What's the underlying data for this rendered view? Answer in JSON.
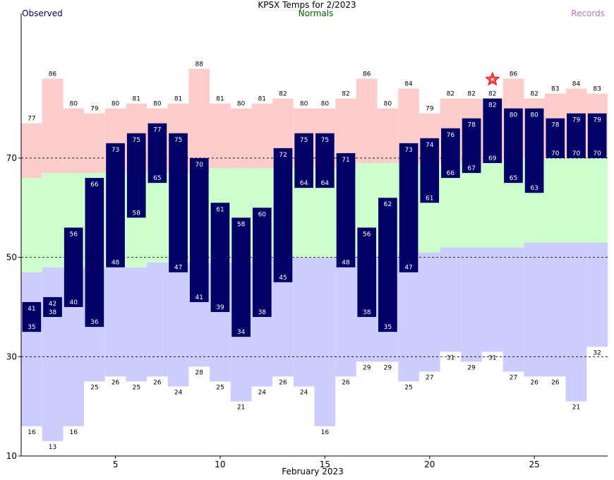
{
  "header": {
    "title": "KPSX Temps for 2/2023",
    "observed_label": "Observed",
    "normals_label": "Normals",
    "records_label": "Records",
    "colors": {
      "observed_text": "#000066",
      "title_text": "#000000",
      "normals_text": "#006600",
      "records_text": "#bb77cc"
    }
  },
  "chart_data": {
    "type": "bar",
    "title": "KPSX Temps for 2/2023",
    "xlabel": "February 2023",
    "ylabel": "",
    "xlim": [
      1,
      28
    ],
    "ylim": [
      10,
      98
    ],
    "x_ticks": [
      5,
      10,
      15,
      20,
      25
    ],
    "y_ticks": [
      10,
      30,
      50,
      70
    ],
    "dashed_gridlines_y": [
      30,
      50,
      70
    ],
    "days": [
      1,
      2,
      3,
      4,
      5,
      6,
      7,
      8,
      9,
      10,
      11,
      12,
      13,
      14,
      15,
      16,
      17,
      18,
      19,
      20,
      21,
      22,
      23,
      24,
      25,
      26,
      27,
      28
    ],
    "observed_high": [
      41,
      42,
      56,
      66,
      73,
      75,
      77,
      75,
      70,
      61,
      58,
      60,
      72,
      75,
      75,
      71,
      56,
      62,
      73,
      74,
      76,
      78,
      82,
      80,
      80,
      78,
      79,
      79
    ],
    "observed_low": [
      35,
      38,
      40,
      36,
      48,
      58,
      65,
      47,
      41,
      39,
      34,
      38,
      45,
      64,
      64,
      48,
      38,
      35,
      47,
      61,
      66,
      67,
      69,
      65,
      63,
      70,
      70,
      70
    ],
    "normal_high": [
      66,
      67,
      67,
      67,
      67,
      67,
      67,
      67,
      67,
      68,
      68,
      68,
      68,
      68,
      68,
      68,
      69,
      69,
      69,
      69,
      69,
      69,
      69,
      70,
      70,
      70,
      70,
      70
    ],
    "normal_low": [
      47,
      48,
      48,
      48,
      48,
      48,
      49,
      49,
      49,
      49,
      49,
      50,
      50,
      50,
      50,
      50,
      50,
      50,
      51,
      51,
      52,
      52,
      52,
      52,
      53,
      53,
      53,
      53
    ],
    "record_high": [
      77,
      86,
      80,
      79,
      80,
      81,
      80,
      81,
      88,
      81,
      80,
      81,
      82,
      80,
      80,
      82,
      86,
      80,
      84,
      79,
      82,
      82,
      82,
      86,
      82,
      83,
      84,
      83
    ],
    "record_low": [
      16,
      13,
      16,
      25,
      26,
      25,
      26,
      24,
      28,
      25,
      21,
      24,
      26,
      24,
      16,
      26,
      29,
      29,
      25,
      27,
      31,
      29,
      31,
      27,
      26,
      26,
      21,
      32
    ],
    "new_record_high_days": [
      23
    ],
    "colors": {
      "observed_bar": "#000066",
      "observed_label": "#ffffff",
      "normal_band": "#ccffcc",
      "record_high_band": "#ffcccc",
      "record_low_band": "#ccccff",
      "record_label": "#000000",
      "record_marker": "#ff0000",
      "grid": "#000000"
    }
  }
}
